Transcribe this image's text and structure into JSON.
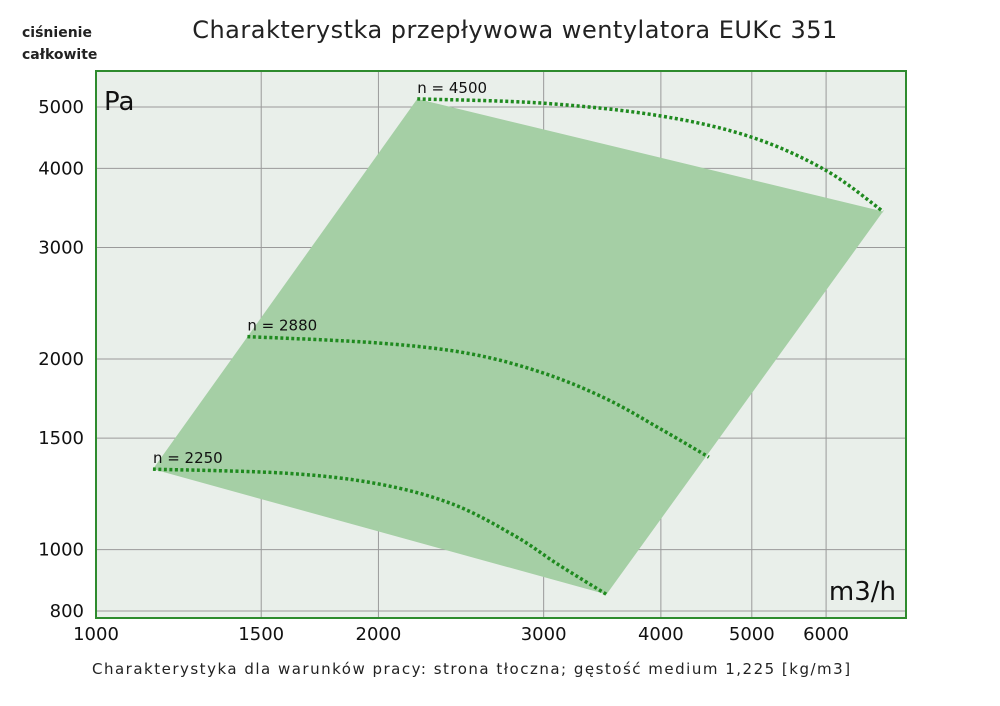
{
  "corner_label": [
    "ciśnienie",
    "całkowite"
  ],
  "title": "Charakterystka przepływowa wentylatora EUKc 351",
  "footnote": "Charakterystyka dla warunków pracy: strona tłoczna; gęstość medium 1,225 [kg/m3]",
  "colors": {
    "plot_background": "#e9efea",
    "plot_border": "#2e8b2e",
    "region_fill": "#a5cfa5",
    "curve": "#1f8a1f",
    "grid": "#9a9a9a"
  },
  "chart_data": {
    "type": "line",
    "title": "Charakterystka przepływowa wentylatora EUKc 351",
    "xscale": "log",
    "yscale": "log",
    "xlabel": "m3/h",
    "ylabel": "Pa",
    "xlim": [
      1000,
      7300
    ],
    "ylim": [
      780,
      5700
    ],
    "x_ticks": [
      1000,
      1500,
      2000,
      3000,
      4000,
      5000,
      6000
    ],
    "y_ticks": [
      800,
      1000,
      1500,
      2000,
      3000,
      4000,
      5000
    ],
    "grid": true,
    "operating_region": [
      [
        1150,
        1340
      ],
      [
        2200,
        5150
      ],
      [
        6900,
        3420
      ],
      [
        3500,
        850
      ]
    ],
    "series": [
      {
        "name": "n = 2250",
        "x": [
          1150,
          1600,
          2000,
          2400,
          2800,
          3100,
          3500
        ],
        "y": [
          1340,
          1320,
          1270,
          1180,
          1050,
          950,
          850
        ]
      },
      {
        "name": "n = 2880",
        "x": [
          1450,
          2000,
          2500,
          3000,
          3500,
          4000,
          4500
        ],
        "y": [
          2170,
          2120,
          2040,
          1900,
          1730,
          1550,
          1400
        ]
      },
      {
        "name": "n = 4500",
        "x": [
          2200,
          3000,
          4000,
          5000,
          6000,
          6900
        ],
        "y": [
          5150,
          5070,
          4840,
          4480,
          3970,
          3420
        ]
      }
    ]
  }
}
